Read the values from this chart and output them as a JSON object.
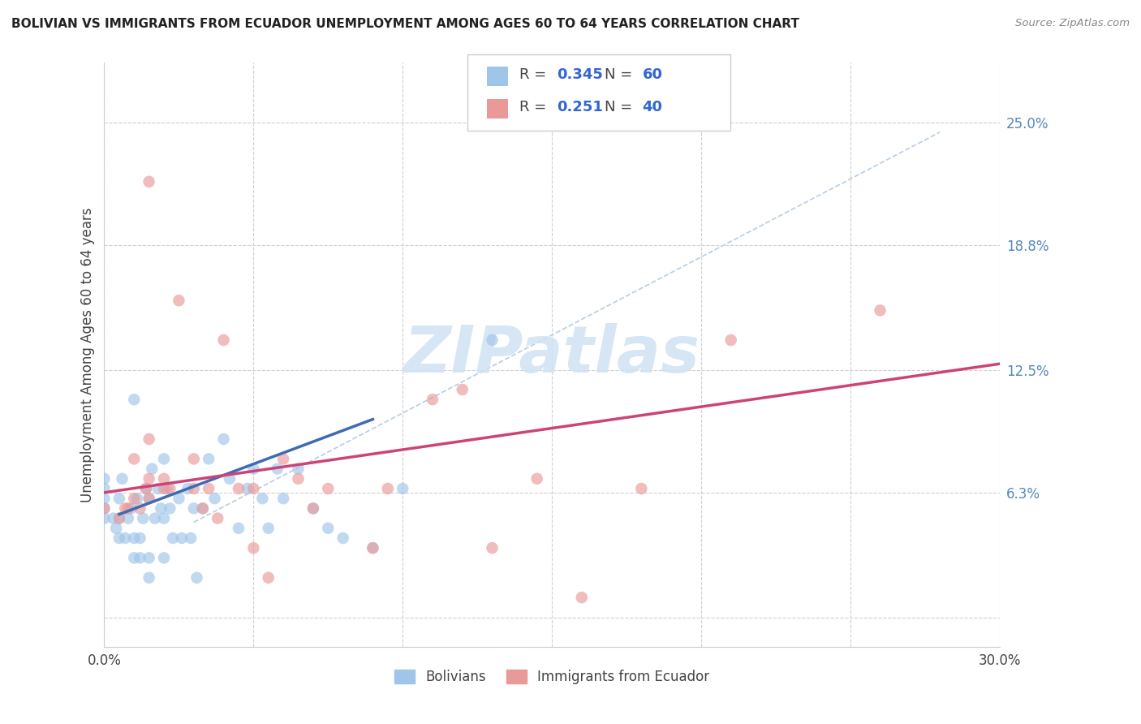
{
  "title": "BOLIVIAN VS IMMIGRANTS FROM ECUADOR UNEMPLOYMENT AMONG AGES 60 TO 64 YEARS CORRELATION CHART",
  "source": "Source: ZipAtlas.com",
  "ylabel": "Unemployment Among Ages 60 to 64 years",
  "xmin": 0.0,
  "xmax": 0.3,
  "ymin": -0.015,
  "ymax": 0.28,
  "yticks": [
    0.0,
    0.063,
    0.125,
    0.188,
    0.25
  ],
  "ytick_labels": [
    "",
    "6.3%",
    "12.5%",
    "18.8%",
    "25.0%"
  ],
  "xtick_positions": [
    0.0,
    0.05,
    0.1,
    0.15,
    0.2,
    0.25,
    0.3
  ],
  "xtick_labels": [
    "0.0%",
    "",
    "",
    "",
    "",
    "",
    "30.0%"
  ],
  "blue_color": "#9fc5e8",
  "pink_color": "#ea9999",
  "blue_line_color": "#3d6bb5",
  "pink_line_color": "#cc4477",
  "dashed_line_color": "#b0c8e0",
  "watermark_color": "#cfe2f3",
  "background_color": "#ffffff",
  "grid_color": "#d0d0d0",
  "blue_points_x": [
    0.0,
    0.0,
    0.0,
    0.0,
    0.0,
    0.003,
    0.004,
    0.005,
    0.005,
    0.005,
    0.006,
    0.007,
    0.008,
    0.009,
    0.01,
    0.01,
    0.01,
    0.011,
    0.012,
    0.012,
    0.013,
    0.014,
    0.015,
    0.015,
    0.015,
    0.016,
    0.017,
    0.018,
    0.019,
    0.02,
    0.02,
    0.02,
    0.021,
    0.022,
    0.023,
    0.025,
    0.026,
    0.028,
    0.029,
    0.03,
    0.031,
    0.033,
    0.035,
    0.037,
    0.04,
    0.042,
    0.045,
    0.048,
    0.05,
    0.053,
    0.055,
    0.058,
    0.06,
    0.065,
    0.07,
    0.075,
    0.08,
    0.09,
    0.1,
    0.13
  ],
  "blue_points_y": [
    0.05,
    0.055,
    0.06,
    0.065,
    0.07,
    0.05,
    0.045,
    0.04,
    0.05,
    0.06,
    0.07,
    0.04,
    0.05,
    0.055,
    0.03,
    0.04,
    0.11,
    0.06,
    0.03,
    0.04,
    0.05,
    0.065,
    0.02,
    0.03,
    0.06,
    0.075,
    0.05,
    0.065,
    0.055,
    0.03,
    0.05,
    0.08,
    0.065,
    0.055,
    0.04,
    0.06,
    0.04,
    0.065,
    0.04,
    0.055,
    0.02,
    0.055,
    0.08,
    0.06,
    0.09,
    0.07,
    0.045,
    0.065,
    0.075,
    0.06,
    0.045,
    0.075,
    0.06,
    0.075,
    0.055,
    0.045,
    0.04,
    0.035,
    0.065,
    0.14
  ],
  "pink_points_x": [
    0.0,
    0.005,
    0.007,
    0.008,
    0.01,
    0.01,
    0.012,
    0.014,
    0.015,
    0.015,
    0.015,
    0.015,
    0.02,
    0.02,
    0.022,
    0.025,
    0.03,
    0.03,
    0.033,
    0.035,
    0.038,
    0.04,
    0.045,
    0.05,
    0.05,
    0.055,
    0.06,
    0.065,
    0.07,
    0.075,
    0.09,
    0.095,
    0.11,
    0.12,
    0.13,
    0.145,
    0.16,
    0.18,
    0.21,
    0.26
  ],
  "pink_points_y": [
    0.055,
    0.05,
    0.055,
    0.055,
    0.06,
    0.08,
    0.055,
    0.065,
    0.06,
    0.07,
    0.09,
    0.22,
    0.065,
    0.07,
    0.065,
    0.16,
    0.065,
    0.08,
    0.055,
    0.065,
    0.05,
    0.14,
    0.065,
    0.035,
    0.065,
    0.02,
    0.08,
    0.07,
    0.055,
    0.065,
    0.035,
    0.065,
    0.11,
    0.115,
    0.035,
    0.07,
    0.01,
    0.065,
    0.14,
    0.155
  ],
  "blue_trend_x": [
    0.005,
    0.09
  ],
  "blue_trend_y": [
    0.052,
    0.1
  ],
  "pink_trend_x": [
    0.0,
    0.3
  ],
  "pink_trend_y": [
    0.063,
    0.128
  ],
  "dashed_trend_x": [
    0.03,
    0.28
  ],
  "dashed_trend_y": [
    0.048,
    0.245
  ]
}
